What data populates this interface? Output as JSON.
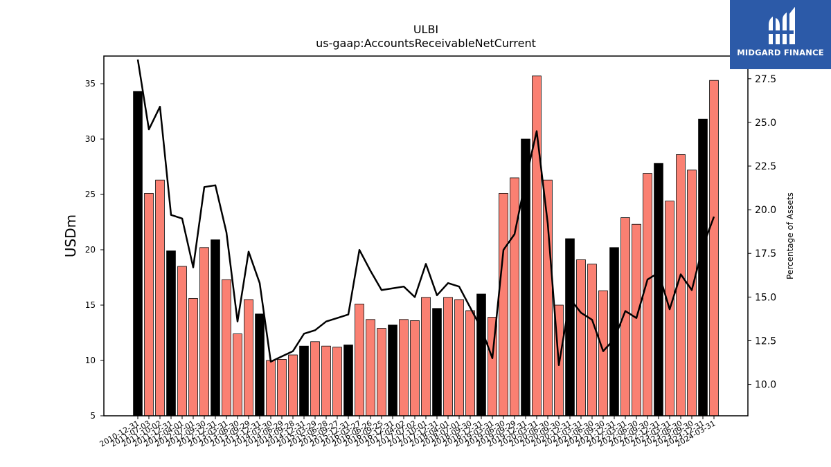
{
  "chart_data": {
    "type": "bar",
    "title": "ULBI",
    "subtitle": "us-gaap:AccountsReceivableNetCurrent",
    "ylabel": "USDm",
    "y2label": "Percentage of Assets",
    "ylim": [
      5,
      37.5
    ],
    "y2lim": [
      8.2,
      28.8
    ],
    "yticks": [
      5,
      10,
      15,
      20,
      25,
      30,
      35
    ],
    "y2ticks": [
      "10.0",
      "12.5",
      "15.0",
      "17.5",
      "20.0",
      "22.5",
      "25.0",
      "27.5"
    ],
    "categories": [
      "2010-12-31",
      "2011-07-03",
      "2011-10-02",
      "2011-12-31",
      "2012-04-01",
      "2012-07-01",
      "2012-09-30",
      "2012-12-31",
      "2013-03-31",
      "2013-06-30",
      "2013-09-29",
      "2013-12-31",
      "2014-03-30",
      "2014-06-29",
      "2014-09-28",
      "2014-12-31",
      "2015-03-29",
      "2015-06-28",
      "2015-09-27",
      "2015-12-31",
      "2016-03-27",
      "2016-06-26",
      "2016-09-25",
      "2016-12-31",
      "2017-04-02",
      "2017-07-02",
      "2017-10-01",
      "2017-12-31",
      "2018-04-01",
      "2018-07-01",
      "2018-09-30",
      "2018-12-31",
      "2019-03-31",
      "2019-06-30",
      "2019-09-29",
      "2019-12-31",
      "2020-03-31",
      "2020-06-30",
      "2020-09-30",
      "2020-12-31",
      "2021-03-31",
      "2021-06-30",
      "2021-09-30",
      "2021-12-31",
      "2022-03-31",
      "2022-06-30",
      "2022-09-30",
      "2022-12-31",
      "2023-03-31",
      "2023-06-30",
      "2023-09-30",
      "2023-12-31",
      "2024-03-31"
    ],
    "series": [
      {
        "values": [
          34.3,
          25.1,
          26.3,
          19.9,
          18.5,
          15.6,
          20.2,
          20.9,
          17.3,
          12.4,
          15.5,
          14.2,
          10.0,
          10.1,
          10.5,
          11.3,
          11.7,
          11.3,
          11.2,
          11.4,
          15.1,
          13.7,
          12.9,
          13.2,
          13.7,
          13.6,
          15.7,
          14.7,
          15.7,
          15.5,
          14.5,
          16.0,
          13.9,
          25.1,
          26.5,
          30.0,
          35.7,
          26.3,
          15.0,
          21.0,
          19.1,
          18.7,
          16.3,
          20.2,
          22.9,
          22.3,
          26.9,
          27.8,
          24.4,
          28.6,
          27.2,
          31.8,
          35.3
        ],
        "fiscal_year_end": [
          true,
          false,
          false,
          true,
          false,
          false,
          false,
          true,
          false,
          false,
          false,
          true,
          false,
          false,
          false,
          true,
          false,
          false,
          false,
          true,
          false,
          false,
          false,
          true,
          false,
          false,
          false,
          true,
          false,
          false,
          false,
          true,
          false,
          false,
          false,
          true,
          false,
          false,
          false,
          true,
          false,
          false,
          false,
          true,
          false,
          false,
          false,
          true,
          false,
          false,
          false,
          true,
          false
        ]
      },
      {
        "axis": "right",
        "values": [
          28.6,
          24.6,
          25.9,
          19.7,
          19.5,
          16.7,
          21.3,
          21.4,
          18.7,
          13.6,
          17.6,
          15.8,
          11.3,
          11.6,
          11.9,
          12.9,
          13.1,
          13.6,
          13.8,
          14.0,
          17.7,
          16.5,
          15.4,
          15.5,
          15.6,
          15.0,
          16.9,
          15.1,
          15.8,
          15.6,
          14.4,
          13.2,
          11.5,
          17.7,
          18.6,
          21.7,
          24.5,
          19.2,
          11.1,
          14.9,
          14.1,
          13.7,
          11.9,
          12.6,
          14.2,
          13.8,
          16.0,
          16.4,
          14.3,
          16.3,
          15.4,
          17.9,
          19.6
        ]
      }
    ],
    "colors": {
      "bar_default": "#fa8072",
      "bar_highlight": "#000000",
      "line": "#000000",
      "bar_edge": "#000000"
    },
    "grid": false,
    "legend": "none"
  },
  "logo": {
    "text": "MIDGARD FINANCE",
    "background": "#2c5aa8",
    "icon": "midgard-logo-icon"
  }
}
